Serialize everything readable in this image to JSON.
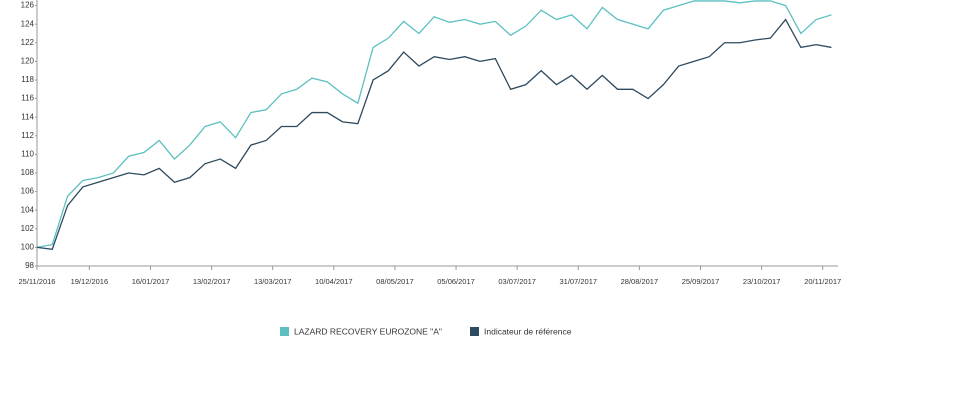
{
  "chart_data": {
    "type": "line",
    "x": [
      "25/11/2016",
      "02/12/2016",
      "09/12/2016",
      "16/12/2016",
      "23/12/2016",
      "30/12/2016",
      "06/01/2017",
      "13/01/2017",
      "20/01/2017",
      "27/01/2017",
      "03/02/2017",
      "10/02/2017",
      "17/02/2017",
      "24/02/2017",
      "03/03/2017",
      "10/03/2017",
      "17/03/2017",
      "24/03/2017",
      "31/03/2017",
      "07/04/2017",
      "14/04/2017",
      "21/04/2017",
      "28/04/2017",
      "05/05/2017",
      "12/05/2017",
      "19/05/2017",
      "26/05/2017",
      "02/06/2017",
      "09/06/2017",
      "16/06/2017",
      "23/06/2017",
      "30/06/2017",
      "07/07/2017",
      "14/07/2017",
      "21/07/2017",
      "28/07/2017",
      "04/08/2017",
      "11/08/2017",
      "18/08/2017",
      "25/08/2017",
      "01/09/2017",
      "08/09/2017",
      "15/09/2017",
      "22/09/2017",
      "29/09/2017",
      "06/10/2017",
      "13/10/2017",
      "20/10/2017",
      "27/10/2017",
      "03/11/2017",
      "10/11/2017",
      "17/11/2017",
      "24/11/2017"
    ],
    "series": [
      {
        "name": "LAZARD RECOVERY EUROZONE \"A\"",
        "color": "#5cc0c0",
        "values": [
          100,
          100.3,
          105.5,
          107.2,
          107.5,
          108,
          109.8,
          110.2,
          111.5,
          109.5,
          111,
          113,
          113.5,
          111.8,
          114.5,
          114.8,
          116.5,
          117,
          118.2,
          117.8,
          116.5,
          115.5,
          121.5,
          122.5,
          124.3,
          123,
          124.8,
          124.2,
          124.5,
          124,
          124.3,
          122.8,
          123.8,
          125.5,
          124.5,
          125,
          123.5,
          125.8,
          124.5,
          124,
          123.5,
          125.5,
          126,
          126.5,
          126.5,
          126.5,
          126.3,
          126.5,
          126.5,
          126,
          123,
          124.5,
          125
        ]
      },
      {
        "name": "Indicateur de référence",
        "color": "#2e4a5e",
        "values": [
          100,
          99.8,
          104.5,
          106.5,
          107,
          107.5,
          108,
          107.8,
          108.5,
          107,
          107.5,
          109,
          109.5,
          108.5,
          111,
          111.5,
          113,
          113,
          114.5,
          114.5,
          113.5,
          113.3,
          118,
          119,
          121,
          119.5,
          120.5,
          120.2,
          120.5,
          120,
          120.3,
          117,
          117.5,
          119,
          117.5,
          118.5,
          117,
          118.5,
          117,
          117,
          116,
          117.5,
          119.5,
          120,
          120.5,
          122,
          122,
          122.3,
          122.5,
          124.5,
          121.5,
          121.8,
          121.5
        ]
      }
    ],
    "xlim": [
      "25/11/2016",
      "27/11/2017"
    ],
    "xticks": [
      "25/11/2016",
      "19/12/2016",
      "16/01/2017",
      "13/02/2017",
      "13/03/2017",
      "10/04/2017",
      "08/05/2017",
      "05/06/2017",
      "03/07/2017",
      "31/07/2017",
      "28/08/2017",
      "25/09/2017",
      "23/10/2017",
      "20/11/2017"
    ],
    "ylim": [
      98,
      126.6
    ],
    "yticks": [
      98,
      100,
      102,
      104,
      106,
      108,
      110,
      112,
      114,
      116,
      118,
      120,
      122,
      124,
      126
    ],
    "legend": "bottom"
  }
}
